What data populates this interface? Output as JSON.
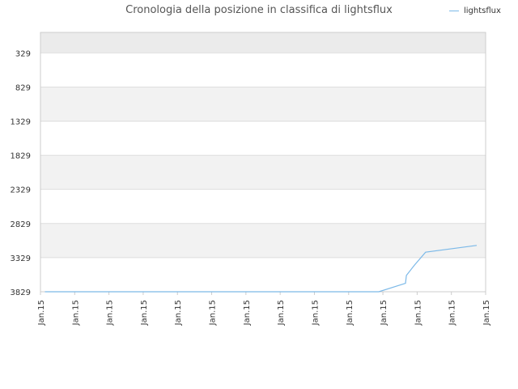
{
  "chart_data": {
    "type": "line",
    "title": "Cronologia della posizione in classifica di lightsflux",
    "xlabel": "",
    "ylabel": "",
    "y_reversed": true,
    "ylim": [
      3829,
      29
    ],
    "y_ticks": [
      329,
      829,
      1329,
      1829,
      2329,
      2829,
      3329,
      3829
    ],
    "x_tick_labels": [
      "Jan.15",
      "Jan.15",
      "Jan.15",
      "Jan.15",
      "Jan.15",
      "Jan.15",
      "Jan.15",
      "Jan.15",
      "Jan.15",
      "Jan.15",
      "Jan.15",
      "Jan.15",
      "Jan.15",
      "Jan.15"
    ],
    "grid": true,
    "legend_position": "top-right",
    "series": [
      {
        "name": "lightsflux",
        "color": "#7cb9e8",
        "points": [
          [
            0.01,
            3829
          ],
          [
            0.76,
            3829
          ],
          [
            0.82,
            3705
          ],
          [
            0.822,
            3590
          ],
          [
            0.84,
            3440
          ],
          [
            0.865,
            3250
          ],
          [
            0.98,
            3150
          ]
        ]
      }
    ],
    "colors": {
      "band": "#f2f2f2",
      "top_band": "#ebebeb",
      "grid": "#dddddd",
      "axis": "#cccccc"
    }
  }
}
